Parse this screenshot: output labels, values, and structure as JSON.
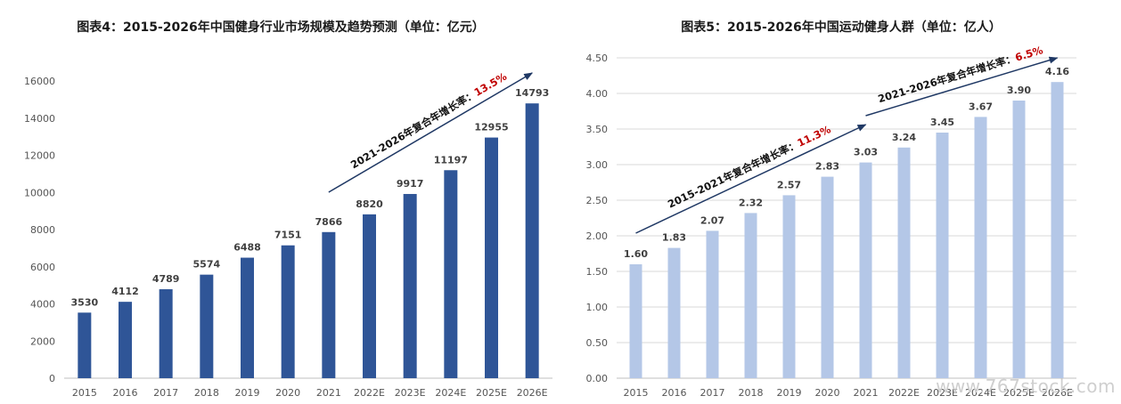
{
  "chart_data": [
    {
      "type": "bar",
      "title": "图表4：2015-2026年中国健身行业市场规模及趋势预测（单位：亿元）",
      "categories": [
        "2015",
        "2016",
        "2017",
        "2018",
        "2019",
        "2020",
        "2021",
        "2022E",
        "2023E",
        "2024E",
        "2025E",
        "2026E"
      ],
      "values": [
        3530,
        4112,
        4789,
        5574,
        6488,
        7151,
        7866,
        8820,
        9917,
        11197,
        12955,
        14793
      ],
      "data_labels": [
        "3530",
        "4112",
        "4789",
        "5574",
        "6488",
        "7151",
        "7866",
        "8820",
        "9917",
        "11197",
        "12955",
        "14793"
      ],
      "ylim": [
        0,
        16000
      ],
      "yticks": [
        "0",
        "2000",
        "4000",
        "6000",
        "8000",
        "10000",
        "12000",
        "14000",
        "16000"
      ],
      "bar_color": "#2f5597",
      "grid": false,
      "annotations": [
        {
          "text": "2021-2026年复合年增长率：",
          "highlight": "13.5%",
          "from_category": "2021",
          "to_category": "2026E",
          "arrow_color": "#1f3864",
          "highlight_color": "#c00000"
        }
      ]
    },
    {
      "type": "bar",
      "title": "图表5：2015-2026年中国运动健身人群（单位：亿人）",
      "categories": [
        "2015",
        "2016",
        "2017",
        "2018",
        "2019",
        "2020",
        "2021",
        "2022E",
        "2023E",
        "2024E",
        "2025E",
        "2026E"
      ],
      "values": [
        1.6,
        1.83,
        2.07,
        2.32,
        2.57,
        2.83,
        3.03,
        3.24,
        3.45,
        3.67,
        3.9,
        4.16
      ],
      "data_labels": [
        "1.60",
        "1.83",
        "2.07",
        "2.32",
        "2.57",
        "2.83",
        "3.03",
        "3.24",
        "3.45",
        "3.67",
        "3.90",
        "4.16"
      ],
      "ylim": [
        0,
        4.5
      ],
      "yticks": [
        "0.00",
        "0.50",
        "1.00",
        "1.50",
        "2.00",
        "2.50",
        "3.00",
        "3.50",
        "4.00",
        "4.50"
      ],
      "bar_color": "#b4c7e7",
      "grid": true,
      "annotations": [
        {
          "text": "2015-2021年复合年增长率：",
          "highlight": "11.3%",
          "from_category": "2015",
          "to_category": "2021",
          "arrow_color": "#1f3864",
          "highlight_color": "#c00000"
        },
        {
          "text": "2021-2026年复合年增长率：",
          "highlight": "6.5%",
          "from_category": "2021",
          "to_category": "2026E",
          "arrow_color": "#1f3864",
          "highlight_color": "#c00000"
        }
      ]
    }
  ],
  "watermark": "www.767stock.com"
}
